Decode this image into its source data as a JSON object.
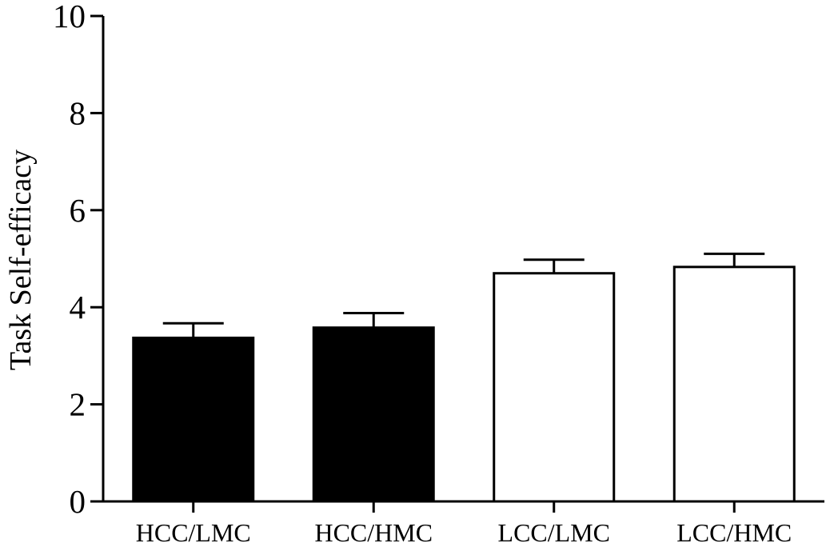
{
  "chart_data": {
    "type": "bar",
    "title": "",
    "xlabel": "",
    "ylabel": "Task  Self-efficacy",
    "ylim": [
      0,
      10
    ],
    "yticks": [
      "0",
      "2",
      "4",
      "6",
      "8",
      "10"
    ],
    "categories": [
      "HCC/LMC",
      "HCC/HMC",
      "LCC/LMC",
      "LCC/HMC"
    ],
    "values": [
      3.37,
      3.58,
      4.7,
      4.83
    ],
    "error_upper": [
      0.3,
      0.3,
      0.28,
      0.27
    ],
    "bar_fill": [
      "#000000",
      "#000000",
      "#ffffff",
      "#ffffff"
    ],
    "bar_stroke": "#000000",
    "grid": false,
    "legend": "none"
  }
}
